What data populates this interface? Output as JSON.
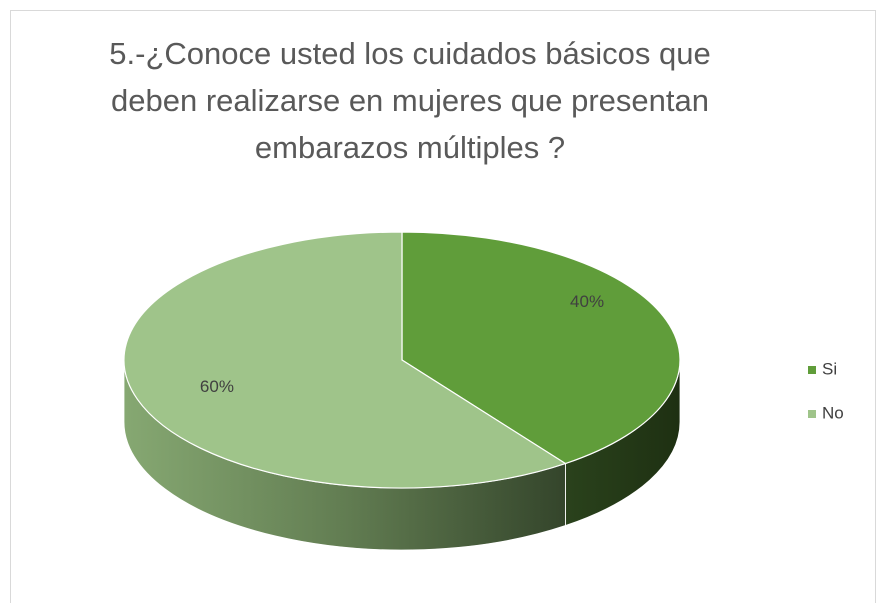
{
  "chart_data": {
    "type": "pie",
    "title": "5.-¿Conoce usted los cuidados básicos que deben realizarse en mujeres que presentan embarazos múltiples ?",
    "categories": [
      "Si",
      "No"
    ],
    "values": [
      40,
      60
    ],
    "value_labels": [
      "40%",
      "60%"
    ],
    "colors": [
      "#609d3a",
      "#9fc48a"
    ],
    "legend": "right"
  }
}
